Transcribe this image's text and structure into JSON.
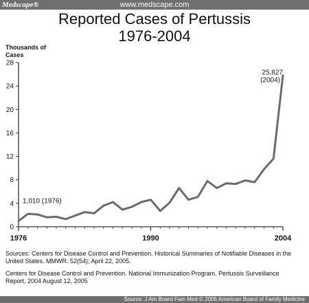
{
  "header": {
    "brand": "Medscape®",
    "url": "www.medscape.com"
  },
  "chart_data": {
    "type": "line",
    "title": "Reported Cases of Pertussis",
    "subtitle": "1976-2004",
    "ylabel": "Thousands of\nCases",
    "xlabel": "",
    "xlim": [
      1976,
      2004
    ],
    "ylim": [
      0,
      28
    ],
    "xticks": [
      1976,
      1990,
      2004
    ],
    "yticks": [
      0,
      4,
      8,
      12,
      16,
      20,
      24,
      28
    ],
    "x": [
      1976,
      1977,
      1978,
      1979,
      1980,
      1981,
      1982,
      1983,
      1984,
      1985,
      1986,
      1987,
      1988,
      1989,
      1990,
      1991,
      1992,
      1993,
      1994,
      1995,
      1996,
      1997,
      1998,
      1999,
      2000,
      2001,
      2002,
      2003,
      2004
    ],
    "y": [
      1.0,
      2.2,
      2.1,
      1.6,
      1.7,
      1.3,
      1.9,
      2.5,
      2.3,
      3.6,
      4.2,
      2.9,
      3.4,
      4.2,
      4.6,
      2.7,
      4.1,
      6.6,
      4.6,
      5.1,
      7.8,
      6.6,
      7.4,
      7.3,
      7.9,
      7.6,
      9.8,
      11.6,
      25.8
    ],
    "color": "#6b6b6b",
    "grid": false,
    "annotations": [
      {
        "text": "1,010 (1976)",
        "x": 1976,
        "y": 1.01
      },
      {
        "text": "25,827\n(2004)",
        "x": 2004,
        "y": 25.827
      }
    ]
  },
  "sources": {
    "line1": "Sources: Centers for Disease Control and Prevention. Historical Summaries of Notifiable Diseases in the United States. MMWR. 52(54); April 22, 2005.",
    "line2": "Centers for Disease Control and Prevention. National Immunization Program. Pertussis Surveillance Report, 2004 August 12, 2005"
  },
  "footer": {
    "text": "Source: J Am Board Fam Med © 2006 American Board of Family Medicine"
  }
}
